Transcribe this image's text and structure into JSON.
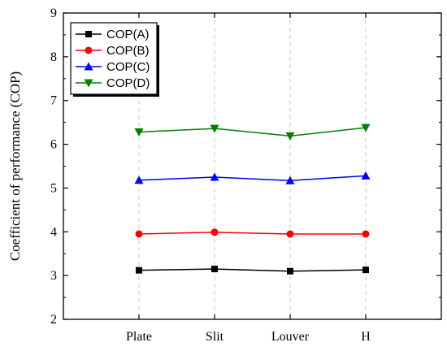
{
  "chart_data": {
    "type": "line",
    "title": "",
    "xlabel": "",
    "ylabel": "Coefficient of performance (COP)",
    "categories": [
      "Plate",
      "Slit",
      "Louver",
      "H"
    ],
    "ylim": [
      2,
      9
    ],
    "yticks": [
      2,
      3,
      4,
      5,
      6,
      7,
      8,
      9
    ],
    "grid": "vertical dashed",
    "legend_position": "top-left",
    "series": [
      {
        "name": "COP(A)",
        "color": "#000000",
        "marker": "square",
        "values": [
          3.12,
          3.15,
          3.1,
          3.13
        ]
      },
      {
        "name": "COP(B)",
        "color": "#ff0000",
        "marker": "circle",
        "values": [
          3.95,
          3.99,
          3.95,
          3.95
        ]
      },
      {
        "name": "COP(C)",
        "color": "#0000ff",
        "marker": "triangle-up",
        "values": [
          5.18,
          5.25,
          5.17,
          5.28
        ]
      },
      {
        "name": "COP(D)",
        "color": "#008000",
        "marker": "triangle-down",
        "values": [
          6.28,
          6.36,
          6.19,
          6.38
        ]
      }
    ]
  }
}
